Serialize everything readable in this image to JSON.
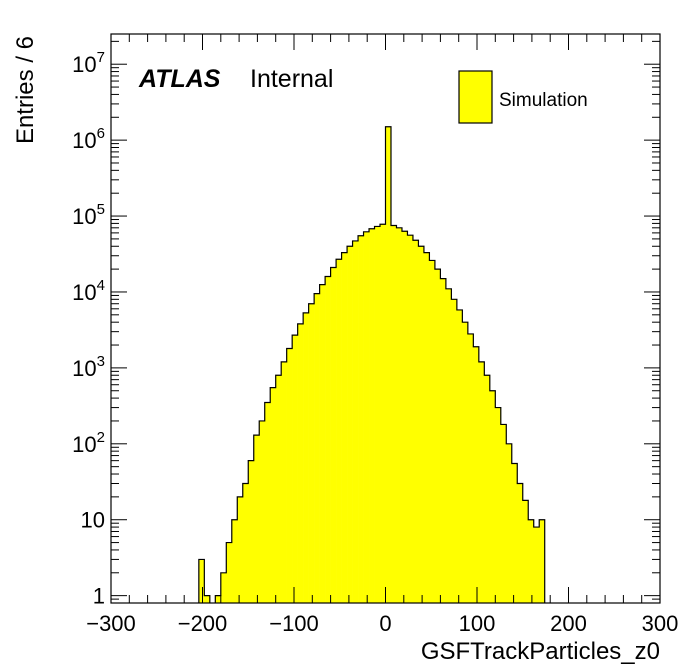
{
  "chart_data": {
    "type": "bar",
    "subtype": "histogram",
    "xlabel": "GSFTrackParticles_z0",
    "ylabel": "Entries / 6",
    "xlim": [
      -300,
      300
    ],
    "ylim": [
      0.8,
      25000000
    ],
    "log_y": true,
    "grid": false,
    "fill_color": "#ffff00",
    "edge_color": "#000000",
    "x_ticks": [
      -300,
      -200,
      -100,
      0,
      100,
      200,
      300
    ],
    "x_tick_labels": [
      "−300",
      "−200",
      "−100",
      "0",
      "100",
      "200",
      "300"
    ],
    "y_tick_labels": [
      {
        "value": 1,
        "base": "1",
        "exp": ""
      },
      {
        "value": 10,
        "base": "10",
        "exp": ""
      },
      {
        "value": 100,
        "base": "10",
        "exp": "2"
      },
      {
        "value": 1000,
        "base": "10",
        "exp": "3"
      },
      {
        "value": 10000,
        "base": "10",
        "exp": "4"
      },
      {
        "value": 100000,
        "base": "10",
        "exp": "5"
      },
      {
        "value": 1000000,
        "base": "10",
        "exp": "6"
      },
      {
        "value": 10000000,
        "base": "10",
        "exp": "7"
      }
    ],
    "annotation": {
      "experiment": "ATLAS",
      "status": "Internal"
    },
    "legend": {
      "position": "top-right",
      "entries": [
        "Simulation"
      ]
    },
    "bin_width": 6,
    "bins": [
      {
        "x0": -204,
        "value": 3
      },
      {
        "x0": -198,
        "value": 1
      },
      {
        "x0": -186,
        "value": 1
      },
      {
        "x0": -180,
        "value": 2
      },
      {
        "x0": -174,
        "value": 5
      },
      {
        "x0": -168,
        "value": 10
      },
      {
        "x0": -162,
        "value": 20
      },
      {
        "x0": -156,
        "value": 30
      },
      {
        "x0": -150,
        "value": 60
      },
      {
        "x0": -144,
        "value": 130
      },
      {
        "x0": -138,
        "value": 200
      },
      {
        "x0": -132,
        "value": 350
      },
      {
        "x0": -126,
        "value": 550
      },
      {
        "x0": -120,
        "value": 800
      },
      {
        "x0": -114,
        "value": 1200
      },
      {
        "x0": -108,
        "value": 1800
      },
      {
        "x0": -102,
        "value": 2700
      },
      {
        "x0": -96,
        "value": 3800
      },
      {
        "x0": -90,
        "value": 5300
      },
      {
        "x0": -84,
        "value": 7000
      },
      {
        "x0": -78,
        "value": 9500
      },
      {
        "x0": -72,
        "value": 12500
      },
      {
        "x0": -66,
        "value": 16000
      },
      {
        "x0": -60,
        "value": 21000
      },
      {
        "x0": -54,
        "value": 27000
      },
      {
        "x0": -48,
        "value": 33000
      },
      {
        "x0": -42,
        "value": 40000
      },
      {
        "x0": -36,
        "value": 47000
      },
      {
        "x0": -30,
        "value": 55000
      },
      {
        "x0": -24,
        "value": 62000
      },
      {
        "x0": -18,
        "value": 68000
      },
      {
        "x0": -12,
        "value": 73000
      },
      {
        "x0": -6,
        "value": 78000
      },
      {
        "x0": 0,
        "value": 1500000
      },
      {
        "x0": 6,
        "value": 75000
      },
      {
        "x0": 12,
        "value": 70000
      },
      {
        "x0": 18,
        "value": 63000
      },
      {
        "x0": 24,
        "value": 56000
      },
      {
        "x0": 30,
        "value": 48000
      },
      {
        "x0": 36,
        "value": 40000
      },
      {
        "x0": 42,
        "value": 33000
      },
      {
        "x0": 48,
        "value": 26000
      },
      {
        "x0": 54,
        "value": 20000
      },
      {
        "x0": 60,
        "value": 15000
      },
      {
        "x0": 66,
        "value": 11000
      },
      {
        "x0": 72,
        "value": 8000
      },
      {
        "x0": 78,
        "value": 5800
      },
      {
        "x0": 84,
        "value": 4000
      },
      {
        "x0": 90,
        "value": 2800
      },
      {
        "x0": 96,
        "value": 1900
      },
      {
        "x0": 102,
        "value": 1200
      },
      {
        "x0": 108,
        "value": 800
      },
      {
        "x0": 114,
        "value": 500
      },
      {
        "x0": 120,
        "value": 300
      },
      {
        "x0": 126,
        "value": 180
      },
      {
        "x0": 132,
        "value": 100
      },
      {
        "x0": 138,
        "value": 55
      },
      {
        "x0": 144,
        "value": 30
      },
      {
        "x0": 150,
        "value": 18
      },
      {
        "x0": 156,
        "value": 10
      },
      {
        "x0": 162,
        "value": 8
      },
      {
        "x0": 168,
        "value": 10
      }
    ]
  }
}
